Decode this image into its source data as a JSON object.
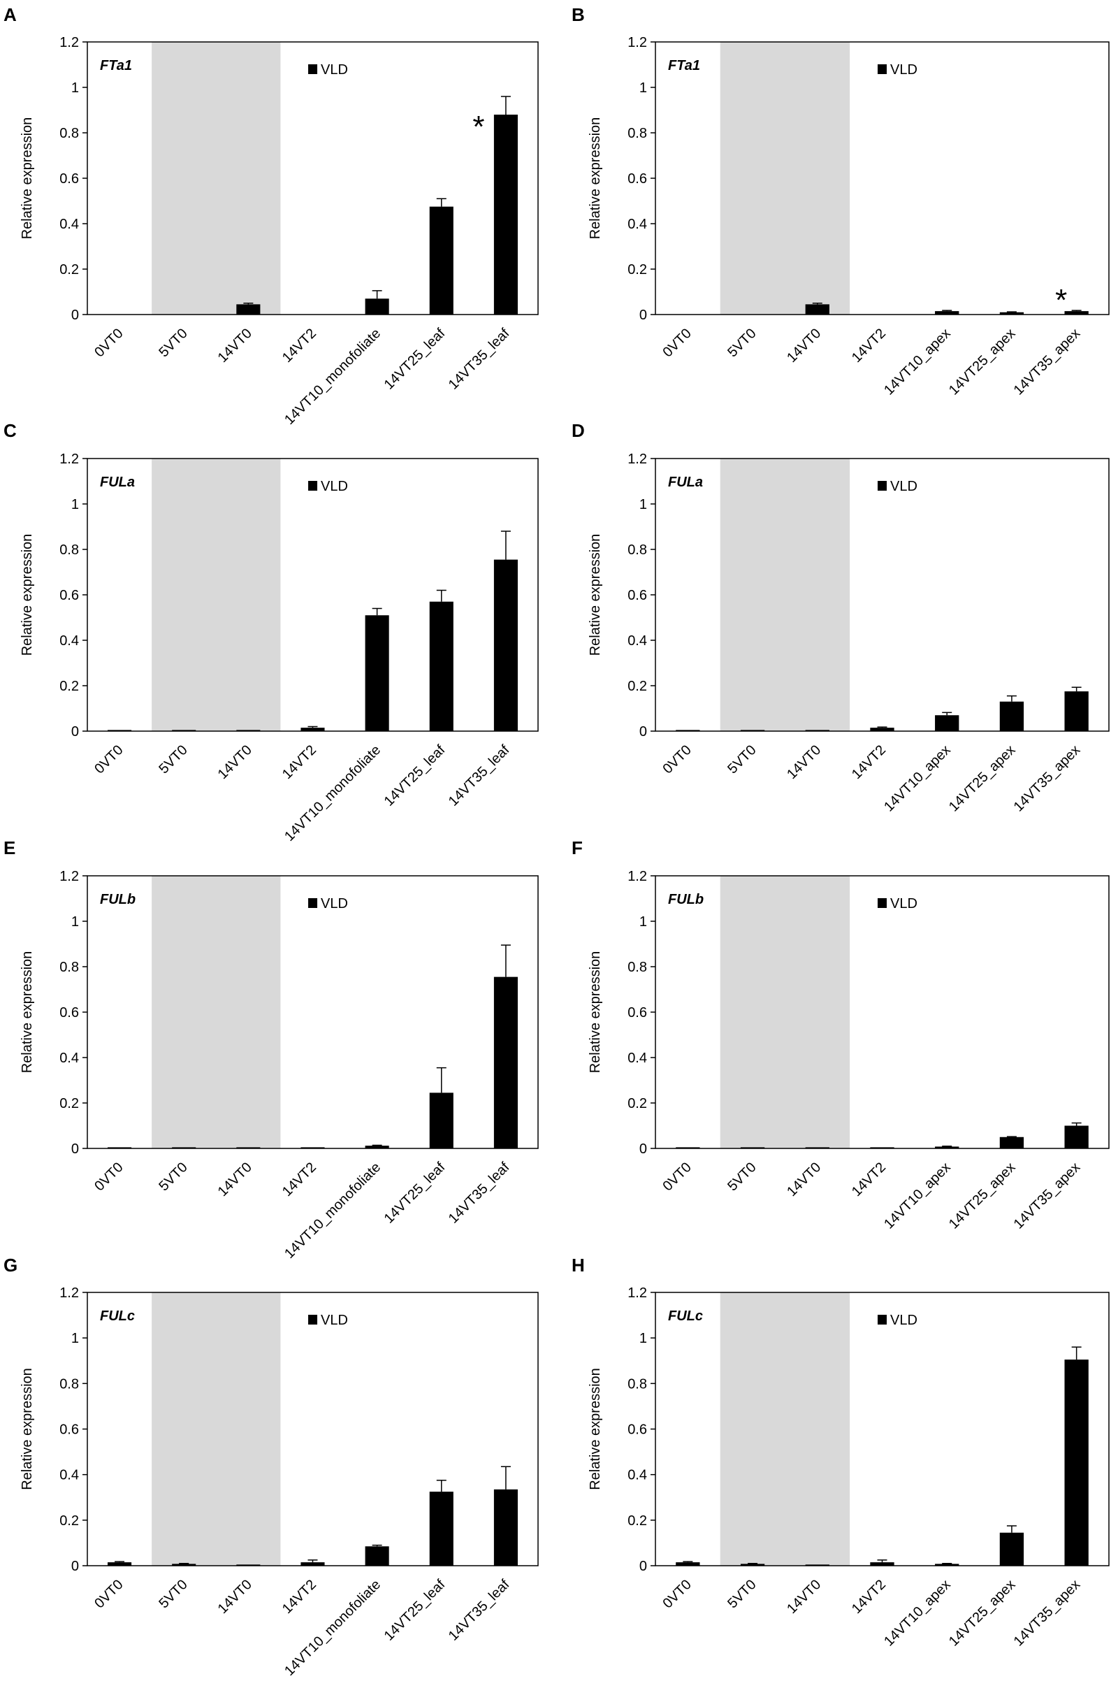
{
  "figure": {
    "legend_label": "VLD",
    "colors": {
      "bar": "#000000",
      "shade": "#d9d9d9",
      "axis": "#000000",
      "text": "#000000"
    }
  },
  "chart_data": [
    {
      "panel": "A",
      "type": "bar",
      "gene": "FTa1",
      "ylabel": "Relative expression",
      "ylim": [
        0,
        1.2
      ],
      "yticks": [
        "0",
        "0.2",
        "0.4",
        "0.6",
        "0.8",
        "1",
        "1.2"
      ],
      "categories": [
        "0VT0",
        "5VT0",
        "14VT0",
        "14VT2",
        "14VT10_monofoliate",
        "14VT25_leaf",
        "14VT35_leaf"
      ],
      "series": [
        {
          "name": "VLD",
          "values": [
            0,
            0,
            0.045,
            0,
            0.07,
            0.475,
            0.88
          ],
          "errors": [
            0,
            0,
            0.005,
            0,
            0.035,
            0.035,
            0.08
          ]
        }
      ],
      "shaded_categories": [
        "5VT0",
        "14VT0"
      ],
      "annotations": [
        {
          "text": "*",
          "category": "14VT35_leaf"
        }
      ]
    },
    {
      "panel": "B",
      "type": "bar",
      "gene": "FTa1",
      "ylabel": "Relative expression",
      "ylim": [
        0,
        1.2
      ],
      "yticks": [
        "0",
        "0.2",
        "0.4",
        "0.6",
        "0.8",
        "1",
        "1.2"
      ],
      "categories": [
        "0VT0",
        "5VT0",
        "14VT0",
        "14VT2",
        "14VT10_apex",
        "14VT25_apex",
        "14VT35_apex"
      ],
      "series": [
        {
          "name": "VLD",
          "values": [
            0,
            0,
            0.045,
            0,
            0.015,
            0.01,
            0.015
          ],
          "errors": [
            0,
            0,
            0.005,
            0,
            0.003,
            0.002,
            0.003
          ]
        }
      ],
      "shaded_categories": [
        "5VT0",
        "14VT0"
      ],
      "annotations": [
        {
          "text": "*",
          "category": "14VT35_apex"
        }
      ]
    },
    {
      "panel": "C",
      "type": "bar",
      "gene": "FULa",
      "ylabel": "Relative expression",
      "ylim": [
        0,
        1.2
      ],
      "yticks": [
        "0",
        "0.2",
        "0.4",
        "0.6",
        "0.8",
        "1",
        "1.2"
      ],
      "categories": [
        "0VT0",
        "5VT0",
        "14VT0",
        "14VT2",
        "14VT10_monofoliate",
        "14VT25_leaf",
        "14VT35_leaf"
      ],
      "series": [
        {
          "name": "VLD",
          "values": [
            0.005,
            0.005,
            0.005,
            0.015,
            0.51,
            0.57,
            0.755
          ],
          "errors": [
            0,
            0,
            0,
            0.005,
            0.03,
            0.05,
            0.125
          ]
        }
      ],
      "shaded_categories": [
        "5VT0",
        "14VT0"
      ],
      "annotations": []
    },
    {
      "panel": "D",
      "type": "bar",
      "gene": "FULa",
      "ylabel": "Relative expression",
      "ylim": [
        0,
        1.2
      ],
      "yticks": [
        "0",
        "0.2",
        "0.4",
        "0.6",
        "0.8",
        "1",
        "1.2"
      ],
      "categories": [
        "0VT0",
        "5VT0",
        "14VT0",
        "14VT2",
        "14VT10_apex",
        "14VT25_apex",
        "14VT35_apex"
      ],
      "series": [
        {
          "name": "VLD",
          "values": [
            0.005,
            0.005,
            0.005,
            0.015,
            0.07,
            0.13,
            0.175
          ],
          "errors": [
            0,
            0,
            0,
            0.003,
            0.012,
            0.025,
            0.018
          ]
        }
      ],
      "shaded_categories": [
        "5VT0",
        "14VT0"
      ],
      "annotations": []
    },
    {
      "panel": "E",
      "type": "bar",
      "gene": "FULb",
      "ylabel": "Relative expression",
      "ylim": [
        0,
        1.2
      ],
      "yticks": [
        "0",
        "0.2",
        "0.4",
        "0.6",
        "0.8",
        "1",
        "1.2"
      ],
      "categories": [
        "0VT0",
        "5VT0",
        "14VT0",
        "14VT2",
        "14VT10_monofoliate",
        "14VT25_leaf",
        "14VT35_leaf"
      ],
      "series": [
        {
          "name": "VLD",
          "values": [
            0.005,
            0.005,
            0.005,
            0.005,
            0.012,
            0.245,
            0.755
          ],
          "errors": [
            0,
            0,
            0,
            0,
            0.002,
            0.11,
            0.14
          ]
        }
      ],
      "shaded_categories": [
        "5VT0",
        "14VT0"
      ],
      "annotations": []
    },
    {
      "panel": "F",
      "type": "bar",
      "gene": "FULb",
      "ylabel": "Relative expression",
      "ylim": [
        0,
        1.2
      ],
      "yticks": [
        "0",
        "0.2",
        "0.4",
        "0.6",
        "0.8",
        "1",
        "1.2"
      ],
      "categories": [
        "0VT0",
        "5VT0",
        "14VT0",
        "14VT2",
        "14VT10_apex",
        "14VT25_apex",
        "14VT35_apex"
      ],
      "series": [
        {
          "name": "VLD",
          "values": [
            0.005,
            0.005,
            0.005,
            0.005,
            0.008,
            0.05,
            0.1
          ],
          "errors": [
            0,
            0,
            0,
            0,
            0.002,
            0.002,
            0.012
          ]
        }
      ],
      "shaded_categories": [
        "5VT0",
        "14VT0"
      ],
      "annotations": []
    },
    {
      "panel": "G",
      "type": "bar",
      "gene": "FULc",
      "ylabel": "Relative expression",
      "ylim": [
        0,
        1.2
      ],
      "yticks": [
        "0",
        "0.2",
        "0.4",
        "0.6",
        "0.8",
        "1",
        "1.2"
      ],
      "categories": [
        "0VT0",
        "5VT0",
        "14VT0",
        "14VT2",
        "14VT10_monofoliate",
        "14VT25_leaf",
        "14VT35_leaf"
      ],
      "series": [
        {
          "name": "VLD",
          "values": [
            0.015,
            0.008,
            0.005,
            0.015,
            0.085,
            0.325,
            0.335
          ],
          "errors": [
            0.003,
            0.002,
            0,
            0.01,
            0.005,
            0.05,
            0.1
          ]
        }
      ],
      "shaded_categories": [
        "5VT0",
        "14VT0"
      ],
      "annotations": []
    },
    {
      "panel": "H",
      "type": "bar",
      "gene": "FULc",
      "ylabel": "Relative expression",
      "ylim": [
        0,
        1.2
      ],
      "yticks": [
        "0",
        "0.2",
        "0.4",
        "0.6",
        "0.8",
        "1",
        "1.2"
      ],
      "categories": [
        "0VT0",
        "5VT0",
        "14VT0",
        "14VT2",
        "14VT10_apex",
        "14VT25_apex",
        "14VT35_apex"
      ],
      "series": [
        {
          "name": "VLD",
          "values": [
            0.015,
            0.008,
            0.005,
            0.015,
            0.008,
            0.145,
            0.905
          ],
          "errors": [
            0.003,
            0.002,
            0,
            0.01,
            0.002,
            0.03,
            0.055
          ]
        }
      ],
      "shaded_categories": [
        "5VT0",
        "14VT0"
      ],
      "annotations": []
    }
  ]
}
